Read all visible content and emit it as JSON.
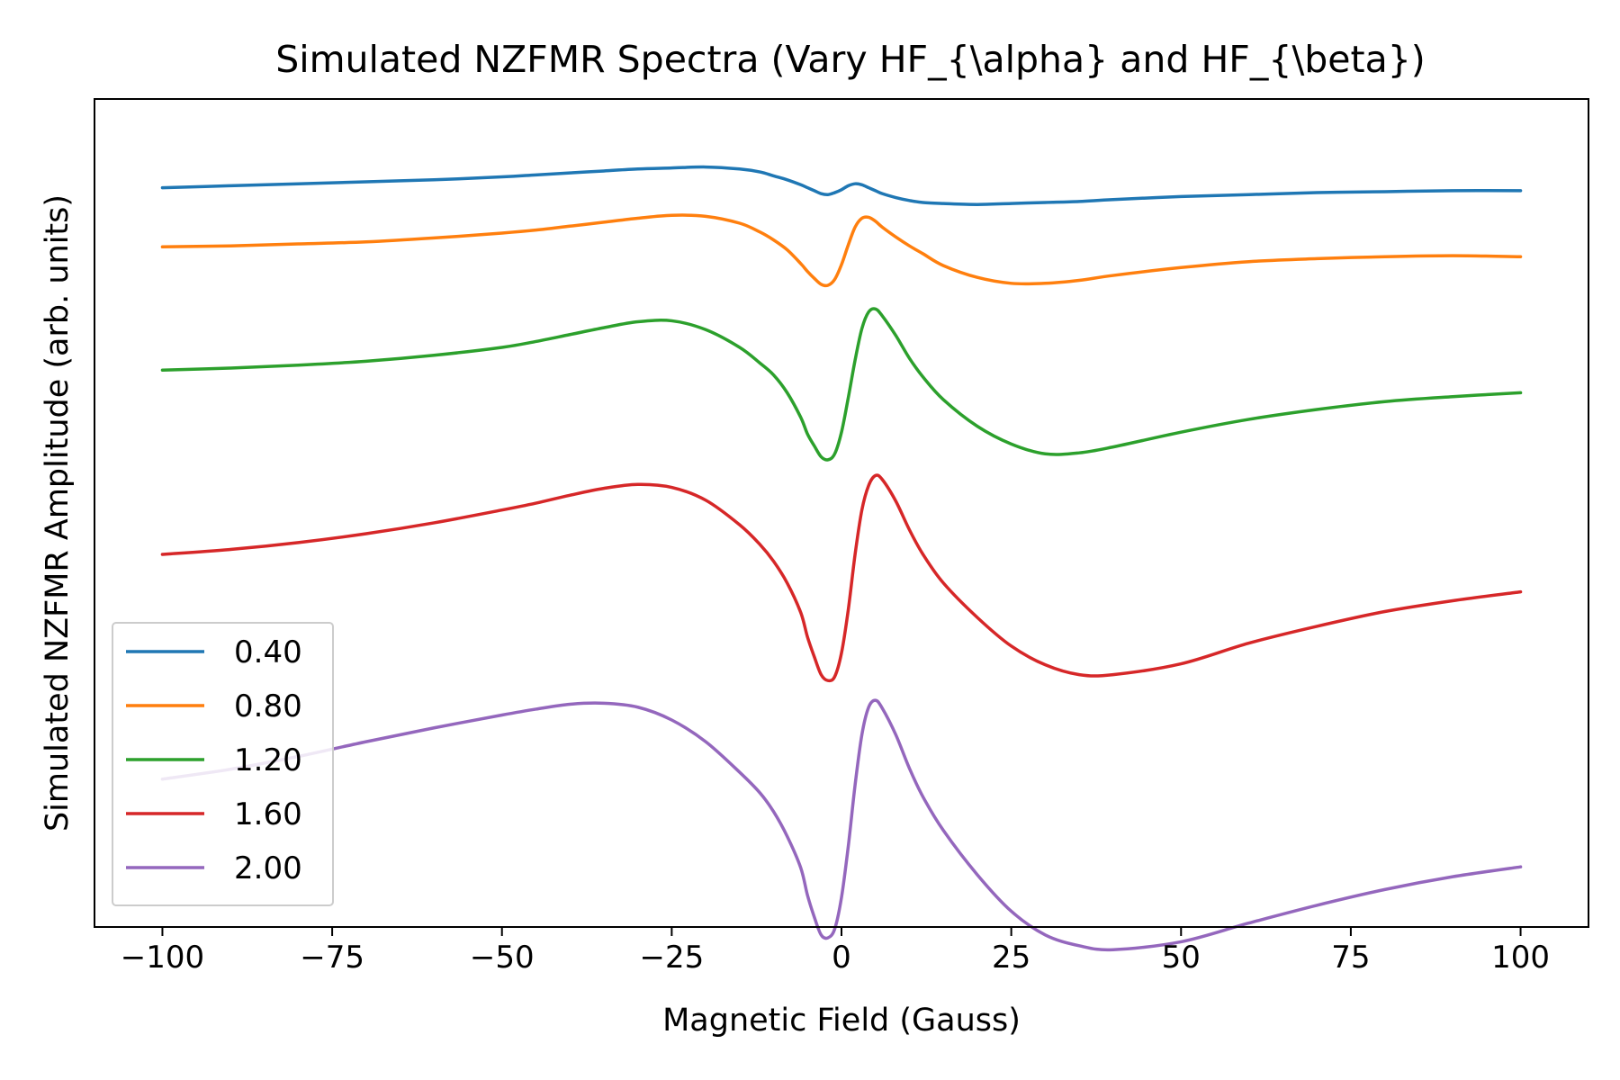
{
  "chart_data": {
    "type": "line",
    "title": "Simulated NZFMR Spectra (Vary HF_{\\alpha} and HF_{\\beta})",
    "xlabel": "Magnetic Field (Gauss)",
    "ylabel": "Simulated NZFMR Amplitude (arb. units)",
    "xlim": [
      -110,
      110
    ],
    "ylim": [
      -7.5,
      0.9
    ],
    "x_ticks": [
      -100,
      -75,
      -50,
      -25,
      0,
      25,
      50,
      75,
      100
    ],
    "x_tick_labels": [
      "−100",
      "−75",
      "−50",
      "−25",
      "0",
      "25",
      "50",
      "75",
      "100"
    ],
    "y_ticks_shown": false,
    "grid": false,
    "legend_position": "lower-left",
    "x": [
      -100,
      -90,
      -80,
      -70,
      -60,
      -50,
      -45,
      -40,
      -35,
      -30,
      -25,
      -20,
      -15,
      -12,
      -10,
      -8,
      -6,
      -5,
      -4,
      -3,
      -2,
      -1,
      0,
      1,
      2,
      3,
      4,
      5,
      6,
      8,
      10,
      12,
      15,
      20,
      25,
      30,
      35,
      40,
      50,
      60,
      70,
      80,
      90,
      100
    ],
    "series": [
      {
        "name": "0.40",
        "color": "#1f77b4",
        "values": [
          0.0,
          0.02,
          0.04,
          0.06,
          0.08,
          0.11,
          0.13,
          0.15,
          0.17,
          0.19,
          0.2,
          0.21,
          0.19,
          0.16,
          0.12,
          0.08,
          0.03,
          0.0,
          -0.03,
          -0.06,
          -0.07,
          -0.05,
          -0.02,
          0.02,
          0.04,
          0.03,
          0.0,
          -0.03,
          -0.06,
          -0.1,
          -0.13,
          -0.15,
          -0.16,
          -0.17,
          -0.16,
          -0.15,
          -0.14,
          -0.12,
          -0.09,
          -0.07,
          -0.05,
          -0.04,
          -0.03,
          -0.03
        ]
      },
      {
        "name": "0.80",
        "color": "#ff7f0e",
        "values": [
          -0.6,
          -0.59,
          -0.57,
          -0.55,
          -0.51,
          -0.46,
          -0.43,
          -0.39,
          -0.35,
          -0.31,
          -0.28,
          -0.29,
          -0.36,
          -0.45,
          -0.53,
          -0.63,
          -0.77,
          -0.85,
          -0.92,
          -0.98,
          -0.99,
          -0.93,
          -0.78,
          -0.58,
          -0.4,
          -0.31,
          -0.3,
          -0.34,
          -0.4,
          -0.5,
          -0.59,
          -0.67,
          -0.79,
          -0.91,
          -0.97,
          -0.97,
          -0.94,
          -0.89,
          -0.81,
          -0.75,
          -0.72,
          -0.7,
          -0.69,
          -0.7
        ]
      },
      {
        "name": "1.20",
        "color": "#2ca02c",
        "values": [
          -1.85,
          -1.83,
          -1.8,
          -1.76,
          -1.7,
          -1.62,
          -1.56,
          -1.49,
          -1.42,
          -1.36,
          -1.35,
          -1.44,
          -1.62,
          -1.78,
          -1.9,
          -2.08,
          -2.33,
          -2.5,
          -2.62,
          -2.73,
          -2.76,
          -2.7,
          -2.48,
          -2.13,
          -1.75,
          -1.43,
          -1.26,
          -1.23,
          -1.3,
          -1.5,
          -1.73,
          -1.92,
          -2.15,
          -2.42,
          -2.6,
          -2.7,
          -2.69,
          -2.63,
          -2.48,
          -2.35,
          -2.25,
          -2.17,
          -2.12,
          -2.08
        ]
      },
      {
        "name": "1.60",
        "color": "#d62728",
        "values": [
          -3.72,
          -3.67,
          -3.6,
          -3.51,
          -3.4,
          -3.27,
          -3.2,
          -3.12,
          -3.05,
          -3.01,
          -3.04,
          -3.17,
          -3.42,
          -3.62,
          -3.79,
          -4.01,
          -4.31,
          -4.56,
          -4.76,
          -4.94,
          -5.0,
          -4.96,
          -4.72,
          -4.28,
          -3.72,
          -3.27,
          -3.02,
          -2.92,
          -2.96,
          -3.18,
          -3.47,
          -3.72,
          -4.01,
          -4.36,
          -4.65,
          -4.84,
          -4.94,
          -4.94,
          -4.83,
          -4.62,
          -4.45,
          -4.3,
          -4.19,
          -4.1
        ]
      },
      {
        "name": "2.00",
        "color": "#9467bd",
        "values": [
          -6.0,
          -5.9,
          -5.77,
          -5.62,
          -5.48,
          -5.35,
          -5.29,
          -5.24,
          -5.23,
          -5.27,
          -5.4,
          -5.62,
          -5.93,
          -6.14,
          -6.33,
          -6.58,
          -6.9,
          -7.18,
          -7.4,
          -7.58,
          -7.61,
          -7.52,
          -7.2,
          -6.68,
          -6.06,
          -5.55,
          -5.27,
          -5.2,
          -5.28,
          -5.55,
          -5.89,
          -6.18,
          -6.52,
          -6.97,
          -7.34,
          -7.58,
          -7.69,
          -7.73,
          -7.65,
          -7.46,
          -7.28,
          -7.12,
          -6.99,
          -6.89
        ]
      }
    ]
  }
}
